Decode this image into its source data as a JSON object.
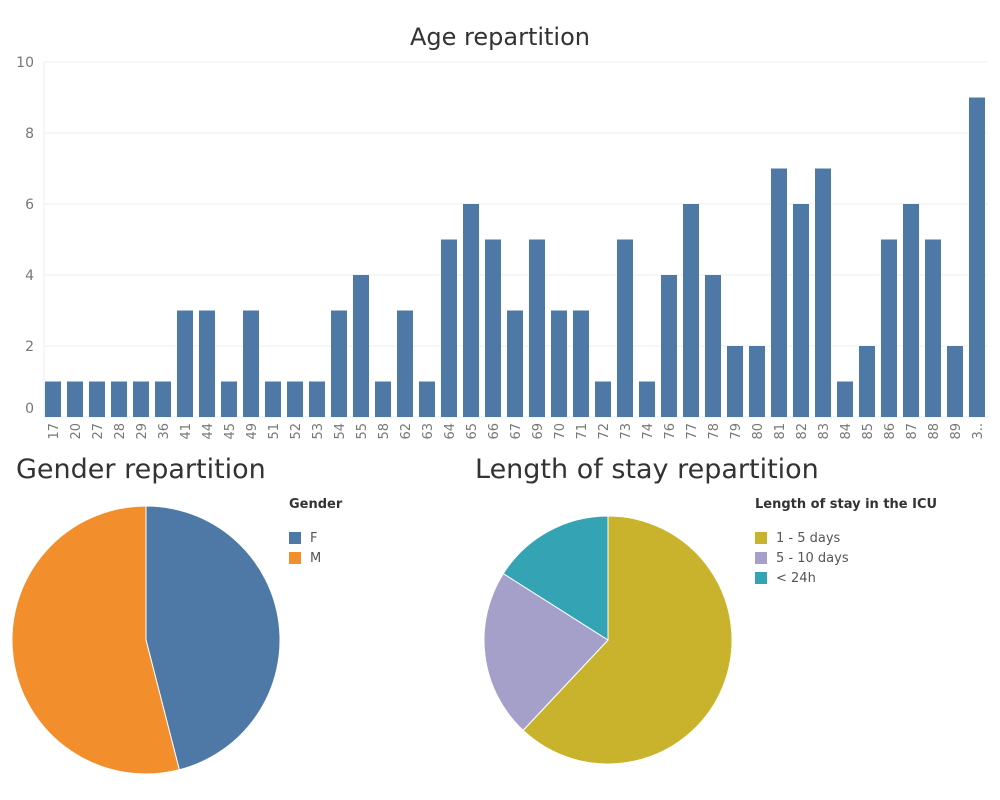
{
  "colors": {
    "bar": "#4e79a7",
    "grid": "#ececec",
    "axis_text": "#777777",
    "pie_female": "#4e79a7",
    "pie_male": "#f28e2b",
    "pie_1_5": "#c9b32c",
    "pie_5_10": "#a5a0c9",
    "pie_lt24": "#34a3b4"
  },
  "chart_data": [
    {
      "type": "bar",
      "title": "Age repartition",
      "xlabel": "",
      "ylabel": "",
      "ylim": [
        0,
        10
      ],
      "yticks": [
        0,
        2,
        4,
        6,
        8,
        10
      ],
      "grid": true,
      "categories": [
        "17",
        "20",
        "27",
        "28",
        "29",
        "36",
        "41",
        "44",
        "45",
        "49",
        "51",
        "52",
        "53",
        "54",
        "55",
        "58",
        "62",
        "63",
        "64",
        "65",
        "66",
        "67",
        "69",
        "70",
        "71",
        "72",
        "73",
        "74",
        "76",
        "77",
        "78",
        "79",
        "80",
        "81",
        "82",
        "83",
        "84",
        "85",
        "86",
        "87",
        "88",
        "89",
        "3.."
      ],
      "values": [
        1,
        1,
        1,
        1,
        1,
        1,
        3,
        3,
        1,
        3,
        1,
        1,
        1,
        3,
        4,
        1,
        3,
        1,
        5,
        6,
        5,
        3,
        5,
        3,
        3,
        1,
        5,
        1,
        4,
        6,
        4,
        2,
        2,
        7,
        6,
        7,
        1,
        2,
        5,
        6,
        5,
        2,
        9
      ]
    },
    {
      "type": "pie",
      "title": "Gender repartition",
      "legend_title": "Gender",
      "legend_position": "right",
      "labels": [
        "F",
        "M"
      ],
      "values": [
        46,
        54
      ]
    },
    {
      "type": "pie",
      "title": "Length of stay repartition",
      "legend_title": "Length of stay in the ICU",
      "legend_position": "right",
      "labels": [
        "1 - 5 days",
        "5 - 10 days",
        "< 24h"
      ],
      "values": [
        62,
        22,
        16
      ]
    }
  ]
}
